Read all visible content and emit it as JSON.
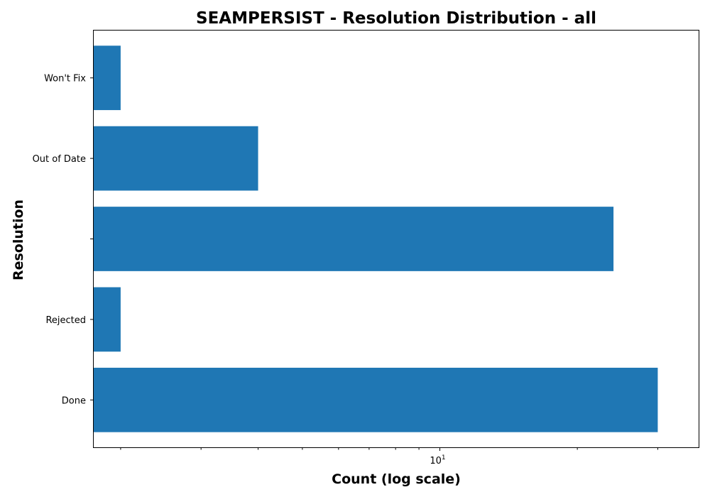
{
  "chart_data": {
    "type": "bar",
    "orientation": "horizontal",
    "title": "SEAMPERSIST - Resolution Distribution - all",
    "xlabel": "Count (log scale)",
    "ylabel": "Resolution",
    "x_scale": "log",
    "xlim": [
      1.74,
      37
    ],
    "x_ticks": [
      {
        "base": "10",
        "exponent": "1",
        "value": 10
      }
    ],
    "categories": [
      "Done",
      "Rejected",
      "",
      "Out of Date",
      "Won't Fix"
    ],
    "values": [
      30,
      2,
      24,
      4,
      2
    ],
    "bar_color": "#1f77b4",
    "grid": false,
    "legend": "none"
  }
}
